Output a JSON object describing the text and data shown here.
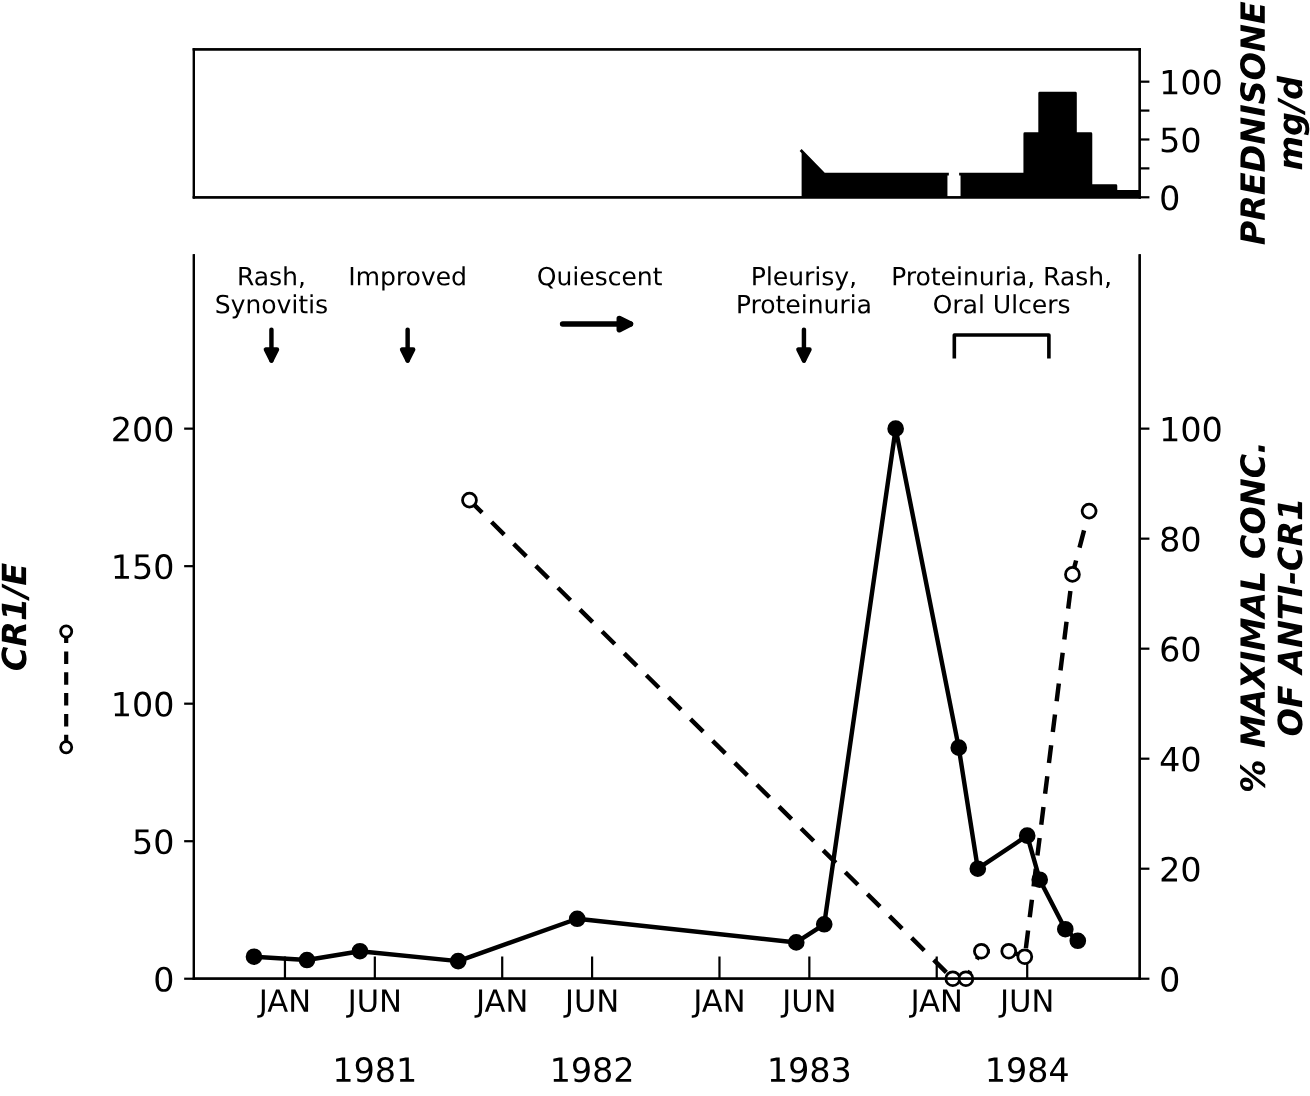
{
  "chart_data": [
    {
      "type": "area",
      "y2label": "PREDNISONE\nmg/d",
      "xlim": [
        "1980-08-01",
        "1984-12-07"
      ],
      "y2lim": [
        0,
        128
      ],
      "y2ticks": [
        0,
        {
          "value": 25,
          "label": null
        },
        50,
        {
          "value": 75,
          "label": null
        },
        100
      ],
      "tick_labels": "y",
      "grid": false,
      "series": [
        {
          "color": "#000000",
          "axis": "y2",
          "x": [
            "1983-05-19",
            "1983-06-26",
            "1984-01-19"
          ],
          "values": [
            40,
            20,
            20
          ]
        },
        {
          "color": "#000000",
          "axis": "y2",
          "x": [
            "1984-02-10",
            "1984-05-28",
            "1984-05-28",
            "1984-06-22",
            "1984-06-22",
            "1984-08-21",
            "1984-08-21",
            "1984-09-16",
            "1984-09-16",
            "1984-10-28",
            "1984-10-28",
            "1984-12-07"
          ],
          "values": [
            20,
            20,
            55,
            55,
            90,
            90,
            55,
            55,
            10,
            10,
            5,
            5
          ]
        }
      ]
    },
    {
      "type": "line",
      "ylabel": "CR1/E",
      "y2label": "% MAXIMAL CONC.\nOF ANTI-CR1",
      "xlim": [
        "1980-08-01",
        "1984-12-07"
      ],
      "ylim": [
        0,
        263
      ],
      "yticks": [
        0,
        50,
        100,
        150,
        200
      ],
      "y2lim": [
        0,
        131.5
      ],
      "y2ticks": [
        0,
        20,
        40,
        60,
        80,
        100
      ],
      "xticks": [
        {
          "value": "1981-01-01",
          "label": "JAN"
        },
        {
          "value": "1981-06-01",
          "label": "JUN"
        },
        {
          "value": "1982-01-01",
          "label": "JAN"
        },
        {
          "value": "1982-06-01",
          "label": "JUN"
        },
        {
          "value": "1983-01-01",
          "label": "JAN"
        },
        {
          "value": "1983-06-01",
          "label": "JUN"
        },
        {
          "value": "1984-01-01",
          "label": "JAN"
        },
        {
          "value": "1984-06-01",
          "label": "JUN"
        }
      ],
      "x2lim": [
        "1980-08-01",
        "1984-12-07"
      ],
      "x2ticks": [
        {
          "value": "1981-06-01",
          "label": "1981"
        },
        {
          "value": "1982-06-01",
          "label": "1982"
        },
        {
          "value": "1983-06-01",
          "label": "1983"
        },
        {
          "value": "1984-06-01",
          "label": "1984"
        }
      ],
      "grid": false,
      "series": [
        {
          "color": "#000000",
          "line_style": "dashed",
          "marker": "circle",
          "x": [
            "1981-11-07",
            "1984-01-28",
            "1984-02-19",
            "1984-03-16",
            "1984-05-01",
            "1984-05-28",
            "1984-08-16",
            "1984-09-13"
          ],
          "values": [
            174,
            0,
            0,
            10,
            10,
            8,
            147,
            170
          ]
        },
        {
          "color": "#000000",
          "axis": "y2",
          "line_style": "solid",
          "marker": "circle",
          "x": [
            "1980-11-10",
            "1981-02-07",
            "1981-05-07",
            "1981-10-19",
            "1982-05-07",
            "1983-05-10",
            "1983-06-26",
            "1983-10-24",
            "1984-02-07",
            "1984-03-10",
            "1984-06-01",
            "1984-06-22",
            "1984-08-04",
            "1984-08-25"
          ],
          "values": [
            4,
            3.4,
            5,
            3.2,
            10.9,
            6.6,
            9.9,
            100,
            42,
            20,
            26,
            18,
            9,
            6.9
          ]
        }
      ],
      "annotations": [
        "Rash,\nSynovitis",
        "Improved",
        "Quiescent",
        "Pleurisy,\nProteinuria",
        "Proteinuria, Rash,\nOral Ulcers"
      ]
    }
  ]
}
